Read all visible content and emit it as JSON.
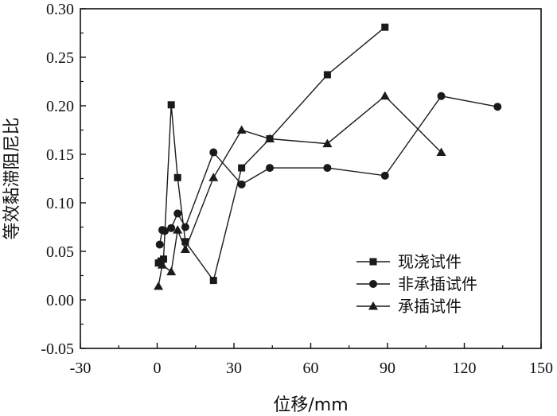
{
  "chart_data": {
    "type": "line",
    "xlabel": "位移/mm",
    "ylabel": "等效黏滞阻尼比",
    "xlim": [
      -30,
      150
    ],
    "ylim": [
      -0.05,
      0.3
    ],
    "x_ticks": [
      -30,
      0,
      30,
      60,
      90,
      120,
      150
    ],
    "y_ticks": [
      -0.05,
      0.0,
      0.05,
      0.1,
      0.15,
      0.2,
      0.25,
      0.3
    ],
    "x_tick_labels": [
      "-30",
      "0",
      "30",
      "60",
      "90",
      "120",
      "150"
    ],
    "y_tick_labels": [
      "-0.05",
      "0.00",
      "0.05",
      "0.10",
      "0.15",
      "0.20",
      "0.25",
      "0.30"
    ],
    "grid": false,
    "legend_position": "bottom-right",
    "series": [
      {
        "name": "现浇试件",
        "marker": "square",
        "color": "#1a1a1a",
        "x": [
          0.5,
          1.5,
          2.5,
          5.5,
          8,
          11,
          22,
          33,
          44,
          66.5,
          89
        ],
        "y": [
          0.038,
          0.04,
          0.042,
          0.201,
          0.126,
          0.06,
          0.02,
          0.136,
          0.166,
          0.232,
          0.281
        ]
      },
      {
        "name": "非承插试件",
        "marker": "circle",
        "color": "#1a1a1a",
        "x": [
          1,
          2,
          3,
          5.5,
          8,
          11,
          22,
          33,
          44,
          66.5,
          89,
          111,
          133
        ],
        "y": [
          0.057,
          0.072,
          0.071,
          0.074,
          0.089,
          0.075,
          0.152,
          0.119,
          0.136,
          0.136,
          0.128,
          0.21,
          0.199
        ]
      },
      {
        "name": "承插试件",
        "marker": "triangle",
        "color": "#1a1a1a",
        "x": [
          0.5,
          2,
          5.5,
          8,
          11,
          22,
          33,
          44,
          66.5,
          89,
          111
        ],
        "y": [
          0.014,
          0.036,
          0.029,
          0.072,
          0.052,
          0.126,
          0.175,
          0.166,
          0.161,
          0.21,
          0.152
        ]
      }
    ]
  }
}
